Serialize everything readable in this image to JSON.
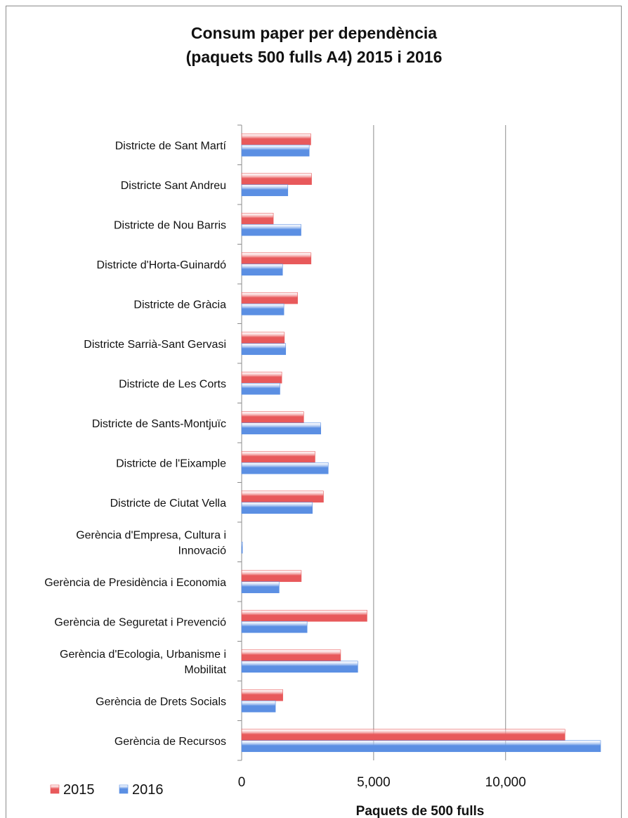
{
  "chart_data": {
    "type": "bar",
    "orientation": "horizontal",
    "title_lines": [
      "Consum paper per dependència",
      "(paquets 500 fulls A4) 2015 i 2016"
    ],
    "xlabel": "Paquets de 500 fulls",
    "ylabel": "",
    "xlim": [
      0,
      13600
    ],
    "xticks": [
      0,
      5000,
      10000
    ],
    "xtick_labels": [
      "0",
      "5,000",
      "10,000"
    ],
    "grid": true,
    "legend_position": "bottom-left",
    "categories": [
      [
        "Districte de Sant Martí"
      ],
      [
        "Districte Sant Andreu"
      ],
      [
        "Districte de Nou Barris"
      ],
      [
        "Districte d'Horta-Guinardó"
      ],
      [
        "Districte de Gràcia"
      ],
      [
        "Districte Sarrià-Sant Gervasi"
      ],
      [
        "Districte de Les Corts"
      ],
      [
        "Districte de Sants-Montjuïc"
      ],
      [
        "Districte de l'Eixample"
      ],
      [
        "Districte de Ciutat Vella"
      ],
      [
        "Gerència d'Empresa, Cultura i",
        "Innovació"
      ],
      [
        "Gerència de Presidència i Economia"
      ],
      [
        "Gerència de Seguretat i Prevenció"
      ],
      [
        "Gerència d'Ecologia, Urbanisme i",
        "Mobilitat"
      ],
      [
        "Gerència de Drets Socials"
      ],
      [
        "Gerència de Recursos"
      ]
    ],
    "series": [
      {
        "name": "2015",
        "color": "#e8595b",
        "values": [
          2620,
          2650,
          1200,
          2630,
          2120,
          1620,
          1520,
          2350,
          2780,
          3100,
          0,
          2260,
          4750,
          3750,
          1560,
          12250
        ]
      },
      {
        "name": "2016",
        "color": "#5b8fe3",
        "values": [
          2560,
          1750,
          2250,
          1550,
          1600,
          1670,
          1450,
          3000,
          3280,
          2680,
          30,
          1420,
          2480,
          4400,
          1280,
          13600
        ]
      }
    ]
  }
}
